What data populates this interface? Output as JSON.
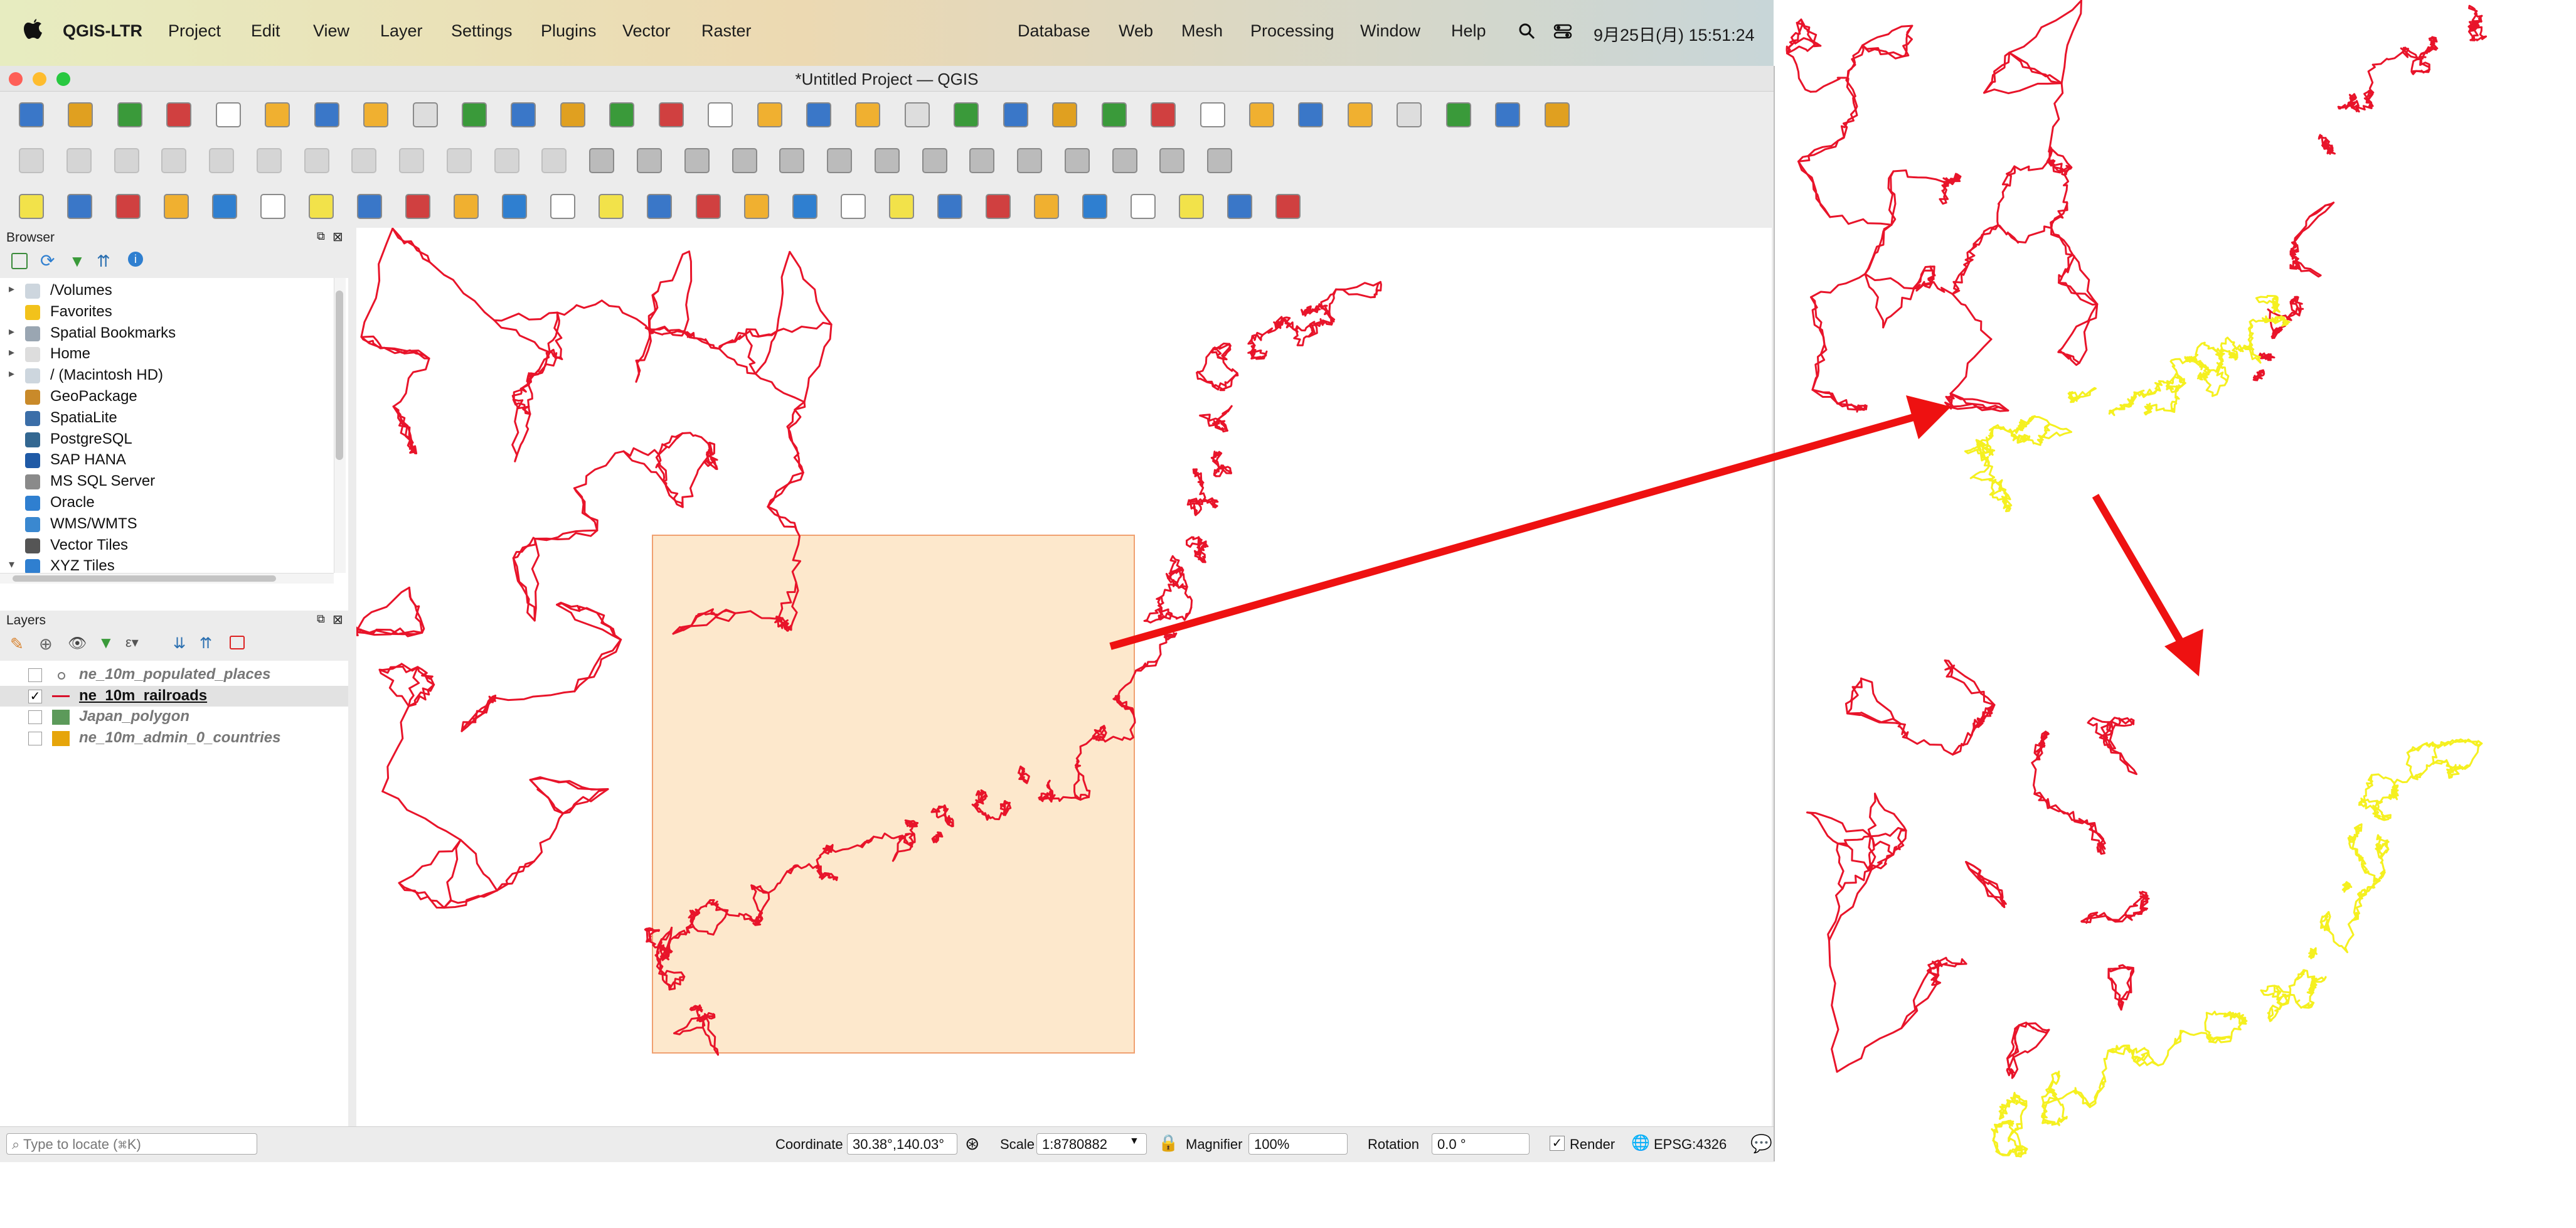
{
  "menubar": {
    "app_name": "QGIS-LTR",
    "items": [
      "Project",
      "Edit",
      "View",
      "Layer",
      "Settings",
      "Plugins",
      "Vector",
      "Raster",
      "Database",
      "Web",
      "Mesh",
      "Processing",
      "Window",
      "Help"
    ],
    "clock": "9月25日(月)  15:51:24"
  },
  "window": {
    "title": "*Untitled Project — QGIS"
  },
  "toolbar": {
    "row1_icons": [
      "new-project-icon",
      "open-project-icon",
      "digitize-icon",
      "pan-icon",
      "new-file-icon",
      "open-icon",
      "save-icon",
      "save-as-icon",
      "print-layout-icon",
      "style-icon",
      "pan-map-icon",
      "pan-selection-icon",
      "zoom-in-icon",
      "zoom-out-icon",
      "zoom-full-icon",
      "zoom-selection-icon",
      "zoom-layer-icon",
      "zoom-native-icon",
      "zoom-last-icon",
      "zoom-next-icon",
      "new-bookmark-icon",
      "show-bookmarks-icon",
      "temporal-icon",
      "refresh-icon",
      "identify-icon",
      "attribute-table-icon",
      "statistics-icon",
      "sum-icon",
      "field-calc-icon",
      "measure-icon",
      "annotation-icon",
      "locate-icon"
    ],
    "row2_icons": [
      "current-edits-icon",
      "toggle-editing-icon",
      "save-edits-icon",
      "add-feature-icon",
      "vertex-tool-icon",
      "modify-attributes-icon",
      "delete-icon",
      "cut-icon",
      "copy-icon",
      "paste-icon",
      "undo-icon",
      "redo-icon",
      "label-abc-icon",
      "label-diagram-icon",
      "label-pin-icon",
      "label-hide-icon",
      "label-move-icon",
      "label-rotate-icon",
      "label-change-icon",
      "label-show-icon",
      "db-manager-icon",
      "georeferencer-icon",
      "python-icon",
      "xml-icon",
      "terrain-icon",
      "help-icon"
    ],
    "row3_icons": [
      "select-feature-icon",
      "select-value-icon",
      "deselect-icon",
      "select-location-icon",
      "web-icon",
      "crosshair-icon",
      "advanced-digitize-icon",
      "reshape-icon",
      "split-icon",
      "offset-icon",
      "label-tool-icon",
      "select-pointer-icon",
      "node-tool-icon",
      "node-add-icon",
      "star-icon",
      "text-annotation-icon",
      "text-tool-icon",
      "georef-icon",
      "pin-icon",
      "magnifier-icon",
      "coordinate-capture-icon",
      "bbox-icon",
      "globe-icon",
      "xy-icon",
      "wrench-icon",
      "qgis-icon",
      "plugin-icon"
    ]
  },
  "browser": {
    "title": "Browser",
    "items": [
      {
        "label": "/Volumes",
        "icon": "folder-icon",
        "arrow": "▸"
      },
      {
        "label": "Favorites",
        "icon": "star-icon",
        "arrow": ""
      },
      {
        "label": "Spatial Bookmarks",
        "icon": "bookmark-icon",
        "arrow": "▸"
      },
      {
        "label": "Home",
        "icon": "home-icon",
        "arrow": "▸"
      },
      {
        "label": "/ (Macintosh HD)",
        "icon": "folder-icon",
        "arrow": "▸"
      },
      {
        "label": "GeoPackage",
        "icon": "geopackage-icon",
        "arrow": ""
      },
      {
        "label": "SpatiaLite",
        "icon": "spatialite-icon",
        "arrow": ""
      },
      {
        "label": "PostgreSQL",
        "icon": "postgresql-icon",
        "arrow": ""
      },
      {
        "label": "SAP HANA",
        "icon": "sap-hana-icon",
        "arrow": ""
      },
      {
        "label": "MS SQL Server",
        "icon": "mssql-icon",
        "arrow": ""
      },
      {
        "label": "Oracle",
        "icon": "oracle-icon",
        "arrow": ""
      },
      {
        "label": "WMS/WMTS",
        "icon": "wms-icon",
        "arrow": ""
      },
      {
        "label": "Vector Tiles",
        "icon": "vector-tiles-icon",
        "arrow": ""
      },
      {
        "label": "XYZ Tiles",
        "icon": "xyz-tiles-icon",
        "arrow": "▾"
      }
    ]
  },
  "layers": {
    "title": "Layers",
    "items": [
      {
        "name": "ne_10m_populated_places",
        "checked": false,
        "swatch": "#777777",
        "active": false,
        "checkmark": ""
      },
      {
        "name": "ne_10m_railroads",
        "checked": true,
        "swatch": "#d8102a",
        "active": true,
        "checkmark": "✓"
      },
      {
        "name": "Japan_polygon",
        "checked": false,
        "swatch": "#5c9a5a",
        "active": false,
        "checkmark": ""
      },
      {
        "name": "ne_10m_admin_0_countries",
        "checked": false,
        "swatch": "#e6a50a",
        "active": false,
        "checkmark": ""
      }
    ]
  },
  "status": {
    "locate_placeholder": "Type to locate (⌘K)",
    "coordinate_label": "Coordinate",
    "coordinate_value": "30.38°,140.03°",
    "scale_label": "Scale",
    "scale_value": "1:8780882",
    "magnifier_label": "Magnifier",
    "magnifier_value": "100%",
    "rotation_label": "Rotation",
    "rotation_value": "0.0 °",
    "render_label": "Render",
    "crs": "EPSG:4326"
  },
  "colors": {
    "railroad": "#e8142a",
    "japan_railroad": "#f5f020",
    "selection_box": "#fde8cc",
    "arrow": "#ee1111"
  }
}
